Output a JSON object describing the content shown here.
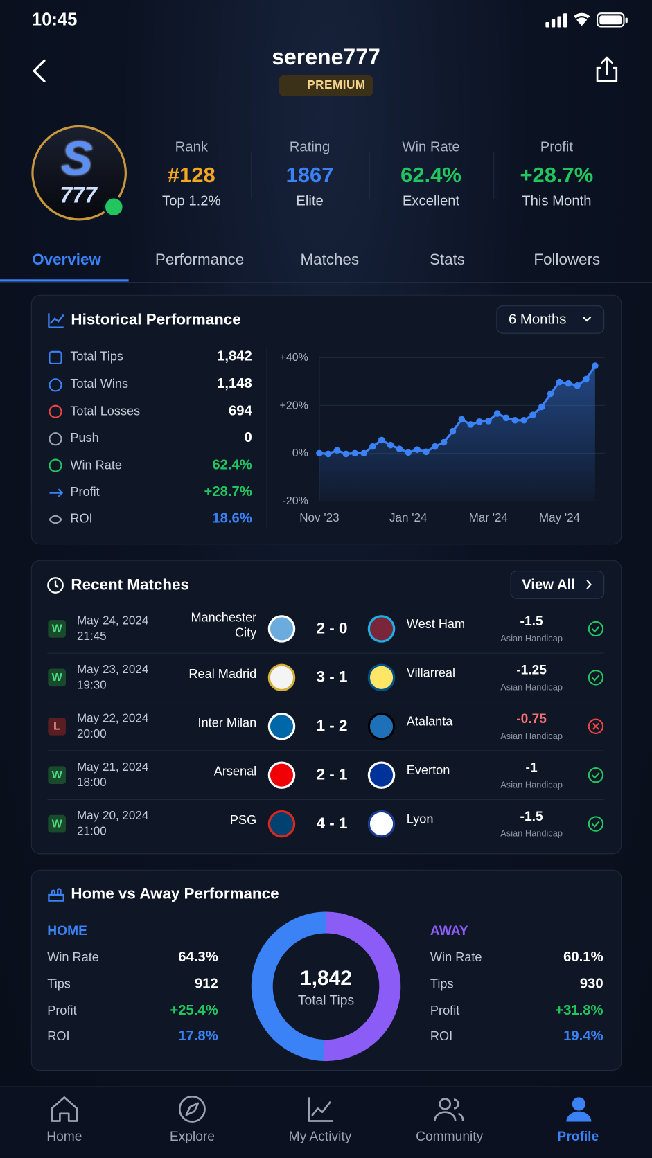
{
  "status_bar": {
    "time": "10:45"
  },
  "header": {
    "username": "serene777",
    "badge": "PREMIUM"
  },
  "avatar": {
    "letter": "S",
    "number": "777"
  },
  "stats": [
    {
      "label": "Rank",
      "value": "#128",
      "sub": "Top 1.2%",
      "color": "#f5a623"
    },
    {
      "label": "Rating",
      "value": "1867",
      "sub": "Elite",
      "color": "#3b82f6"
    },
    {
      "label": "Win Rate",
      "value": "62.4%",
      "sub": "Excellent",
      "color": "#22c55e"
    },
    {
      "label": "Profit",
      "value": "+28.7%",
      "sub": "This Month",
      "color": "#22c55e"
    }
  ],
  "tabs": {
    "items": [
      "Overview",
      "Performance",
      "Matches",
      "Stats",
      "Followers"
    ],
    "active": 0
  },
  "historical": {
    "title": "Historical Performance",
    "period": "6 Months",
    "metrics": [
      {
        "label": "Total Tips",
        "value": "1,842",
        "color": "#ffffff"
      },
      {
        "label": "Total Wins",
        "value": "1,148",
        "color": "#ffffff"
      },
      {
        "label": "Total Losses",
        "value": "694",
        "color": "#ffffff"
      },
      {
        "label": "Push",
        "value": "0",
        "color": "#ffffff"
      },
      {
        "label": "Win Rate",
        "value": "62.4%",
        "color": "#22c55e"
      },
      {
        "label": "Profit",
        "value": "+28.7%",
        "color": "#22c55e"
      },
      {
        "label": "ROI",
        "value": "18.6%",
        "color": "#3b82f6"
      }
    ]
  },
  "chart_data": {
    "type": "line",
    "categories": [
      "Nov '23",
      null,
      null,
      null,
      null,
      null,
      null,
      null,
      null,
      null,
      "Jan '24",
      null,
      null,
      null,
      null,
      null,
      null,
      null,
      null,
      "Mar '24",
      null,
      null,
      null,
      null,
      null,
      null,
      null,
      "May '24",
      null,
      null,
      null,
      null
    ],
    "values": [
      0,
      -0.3,
      1.2,
      -0.3,
      0,
      0,
      2.8,
      5.5,
      3.4,
      1.8,
      0.3,
      1.5,
      0.6,
      2.8,
      4.6,
      9.2,
      14.2,
      12,
      13.2,
      13.5,
      16.6,
      14.8,
      13.8,
      13.8,
      16,
      19.4,
      24.9,
      29.8,
      29.2,
      28.3,
      31,
      36.6
    ],
    "color": "#3b82f6",
    "ylim": [
      -20,
      40
    ],
    "yticks": [
      {
        "value": 40,
        "label": "+40%"
      },
      {
        "value": 20,
        "label": "+20%"
      },
      {
        "value": 0,
        "label": "0%"
      },
      {
        "value": -20,
        "label": "-20%"
      }
    ],
    "grid": true
  },
  "recent": {
    "title": "Recent Matches",
    "action": "View All",
    "matches": [
      {
        "result": "W",
        "date": "May 24, 2024",
        "time": "21:45",
        "home": "Manchester City",
        "score": "2 - 0",
        "away": "West Ham",
        "line": "-1.5",
        "market": "Asian Handicap"
      },
      {
        "result": "W",
        "date": "May 23, 2024",
        "time": "19:30",
        "home": "Real Madrid",
        "score": "3 - 1",
        "away": "Villarreal",
        "line": "-1.25",
        "market": "Asian Handicap"
      },
      {
        "result": "L",
        "date": "May 22, 2024",
        "time": "20:00",
        "home": "Inter Milan",
        "score": "1 - 2",
        "away": "Atalanta",
        "line": "-0.75",
        "market": "Asian Handicap"
      },
      {
        "result": "W",
        "date": "May 21, 2024",
        "time": "18:00",
        "home": "Arsenal",
        "score": "2 - 1",
        "away": "Everton",
        "line": "-1",
        "market": "Asian Handicap"
      },
      {
        "result": "W",
        "date": "May 20, 2024",
        "time": "21:00",
        "home": "PSG",
        "score": "4 - 1",
        "away": "Lyon",
        "line": "-1.5",
        "market": "Asian Handicap"
      }
    ]
  },
  "home_away": {
    "title": "Home vs Away Performance",
    "total": "1,842",
    "total_label": "Total Tips",
    "home": {
      "label": "HOME",
      "color": "#3b82f6",
      "metrics": [
        {
          "label": "Win Rate",
          "value": "64.3%",
          "color": "#ffffff"
        },
        {
          "label": "Tips",
          "value": 912,
          "color": "#ffffff"
        },
        {
          "label": "Profit",
          "value": "+25.4%",
          "color": "#22c55e"
        },
        {
          "label": "ROI",
          "value": "17.8%",
          "color": "#3b82f6"
        }
      ]
    },
    "away": {
      "label": "AWAY",
      "color": "#8b5cf6",
      "metrics": [
        {
          "label": "Win Rate",
          "value": "60.1%",
          "color": "#ffffff"
        },
        {
          "label": "Tips",
          "value": 930,
          "color": "#ffffff"
        },
        {
          "label": "Profit",
          "value": "+31.8%",
          "color": "#22c55e"
        },
        {
          "label": "ROI",
          "value": "19.4%",
          "color": "#3b82f6"
        }
      ]
    }
  },
  "nav": {
    "items": [
      "Home",
      "Explore",
      "My Activity",
      "Community",
      "Profile"
    ],
    "active": 4
  }
}
